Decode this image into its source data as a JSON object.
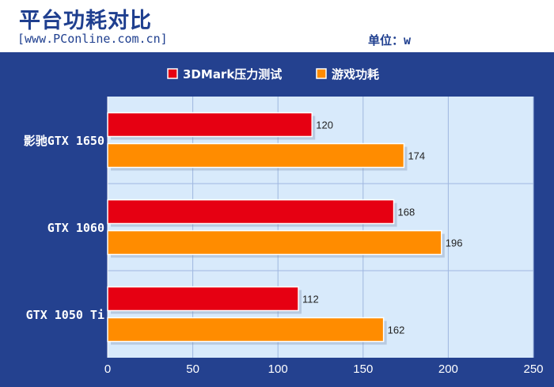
{
  "header": {
    "title": "平台功耗对比",
    "source": "[www.PConline.com.cn]",
    "unit": "单位：w"
  },
  "colors": {
    "background": "#24418f",
    "plot_area": "#d8eafb",
    "series_1": "#e60012",
    "series_2": "#ff8c00",
    "grid": "#9fb7e0",
    "text_light": "#ffffff"
  },
  "chart_data": {
    "type": "bar",
    "orientation": "horizontal",
    "categories": [
      "影驰GTX 1650",
      "GTX 1060",
      "GTX 1050 Ti"
    ],
    "series": [
      {
        "name": "3DMark压力测试",
        "color": "#e60012",
        "values": [
          120,
          168,
          112
        ]
      },
      {
        "name": "游戏功耗",
        "color": "#ff8c00",
        "values": [
          174,
          196,
          162
        ]
      }
    ],
    "xlim": [
      0,
      250
    ],
    "x_ticks": [
      0,
      50,
      100,
      150,
      200,
      250
    ],
    "legend_position": "top",
    "grid": true
  }
}
